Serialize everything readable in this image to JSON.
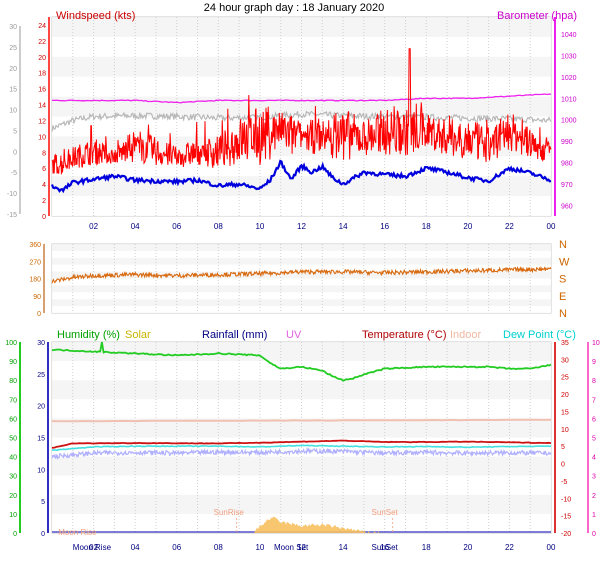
{
  "title": "24 hour graph day : 18 January 2020",
  "time_ticks": [
    "02",
    "04",
    "06",
    "08",
    "10",
    "12",
    "14",
    "16",
    "18",
    "20",
    "22",
    "00"
  ],
  "chart_data": [
    {
      "type": "line",
      "name": "wind-barometer",
      "x_unit": "hour",
      "xlim": [
        0,
        24
      ],
      "y_left": {
        "label": "Windspeed (kts)",
        "ticks": [
          24,
          22,
          20,
          18,
          16,
          14,
          12,
          10,
          8,
          6,
          4,
          2,
          0
        ],
        "ylim": [
          0,
          25
        ]
      },
      "y_right": {
        "label": "Barometer (hpa)",
        "ticks": [
          1040,
          1030,
          1020,
          1010,
          1000,
          990,
          980,
          970,
          960
        ],
        "ylim": [
          955,
          1048
        ]
      },
      "y_outer_left": {
        "ticks": [
          30,
          25,
          20,
          15,
          10,
          5,
          0,
          -5,
          -10,
          -15
        ]
      },
      "series": [
        {
          "key": "gust",
          "color": "#ff0000",
          "samples": [
            [
              0,
              7
            ],
            [
              1,
              8
            ],
            [
              2,
              9
            ],
            [
              3,
              8
            ],
            [
              4,
              10
            ],
            [
              5,
              9
            ],
            [
              6,
              8
            ],
            [
              7,
              9
            ],
            [
              8,
              9
            ],
            [
              9,
              11
            ],
            [
              10,
              12
            ],
            [
              11,
              12
            ],
            [
              12,
              11
            ],
            [
              13,
              11
            ],
            [
              14,
              12
            ],
            [
              15,
              11
            ],
            [
              16,
              12
            ],
            [
              17,
              12
            ],
            [
              18,
              12
            ],
            [
              19,
              11
            ],
            [
              20,
              11
            ],
            [
              21,
              10
            ],
            [
              22,
              12
            ],
            [
              23,
              10
            ],
            [
              24,
              9
            ]
          ],
          "peak": [
            17.2,
            21
          ]
        },
        {
          "key": "average",
          "color": "#0000dd",
          "samples": [
            [
              0,
              3.8
            ],
            [
              0.5,
              3.2
            ],
            [
              1,
              4.2
            ],
            [
              2,
              4.6
            ],
            [
              3,
              5.0
            ],
            [
              4,
              4.5
            ],
            [
              5,
              4.4
            ],
            [
              6,
              4.3
            ],
            [
              7,
              4.5
            ],
            [
              8,
              3.8
            ],
            [
              9,
              4.0
            ],
            [
              10,
              3.4
            ],
            [
              10.5,
              4.5
            ],
            [
              11,
              6.8
            ],
            [
              11.5,
              4.6
            ],
            [
              12,
              6.3
            ],
            [
              12.5,
              5.5
            ],
            [
              13,
              6.2
            ],
            [
              13.5,
              4.8
            ],
            [
              14,
              4.0
            ],
            [
              15,
              5.5
            ],
            [
              16,
              5.2
            ],
            [
              17,
              5.0
            ],
            [
              18,
              6.0
            ],
            [
              19,
              5.5
            ],
            [
              20,
              4.8
            ],
            [
              21,
              4.4
            ],
            [
              22,
              6.0
            ],
            [
              23,
              5.4
            ],
            [
              24,
              4.5
            ]
          ]
        },
        {
          "key": "barometer",
          "color": "#ee22ee",
          "unit": "hpa",
          "samples": [
            [
              0,
              1009
            ],
            [
              4,
              1009
            ],
            [
              6,
              1008
            ],
            [
              8,
              1009
            ],
            [
              10,
              1009
            ],
            [
              12,
              1009
            ],
            [
              14,
              1009
            ],
            [
              16,
              1009
            ],
            [
              18,
              1010
            ],
            [
              20,
              1010
            ],
            [
              22,
              1011
            ],
            [
              24,
              1012
            ]
          ]
        },
        {
          "key": "secondary",
          "color": "#b8b8b8",
          "samples": [
            [
              0,
              11
            ],
            [
              1,
              12
            ],
            [
              2,
              12.5
            ],
            [
              4,
              12.6
            ],
            [
              6,
              12.5
            ],
            [
              8,
              12.3
            ],
            [
              10,
              12.4
            ],
            [
              12,
              12.8
            ],
            [
              14,
              12.6
            ],
            [
              16,
              12.5
            ],
            [
              18,
              12.4
            ],
            [
              20,
              12.3
            ],
            [
              22,
              12.2
            ],
            [
              24,
              12
            ]
          ]
        }
      ]
    },
    {
      "type": "line",
      "name": "wind-direction",
      "x_unit": "hour",
      "xlim": [
        0,
        24
      ],
      "y_left": {
        "ticks": [
          360,
          270,
          180,
          90,
          0
        ],
        "ylim": [
          0,
          360
        ]
      },
      "y_right": {
        "ticks": [
          "N",
          "W",
          "S",
          "E",
          "N"
        ]
      },
      "series": [
        {
          "key": "direction",
          "color": "#d86a10",
          "samples": [
            [
              0,
              165
            ],
            [
              1,
              185
            ],
            [
              2,
              195
            ],
            [
              4,
              200
            ],
            [
              6,
              195
            ],
            [
              8,
              200
            ],
            [
              10,
              205
            ],
            [
              12,
              215
            ],
            [
              14,
              215
            ],
            [
              16,
              210
            ],
            [
              18,
              215
            ],
            [
              20,
              220
            ],
            [
              22,
              225
            ],
            [
              24,
              230
            ]
          ]
        }
      ]
    },
    {
      "type": "line",
      "name": "temperature-humidity",
      "x_unit": "hour",
      "xlim": [
        0,
        24
      ],
      "labels": [
        {
          "text": "Humidity (%)",
          "color": "#00a000"
        },
        {
          "text": "Solar",
          "color": "#c8b400"
        },
        {
          "text": "Rainfall (mm)",
          "color": "#000080"
        },
        {
          "text": "UV",
          "color": "#e060e0"
        },
        {
          "text": "Temperature (°C)",
          "color": "#b00000"
        },
        {
          "text": "Indoor",
          "color": "#f0b8a0"
        },
        {
          "text": "Dew Point (°C)",
          "color": "#00d0d0"
        }
      ],
      "y_left_humidity": {
        "ticks": [
          100,
          90,
          80,
          70,
          60,
          50,
          40,
          30,
          20,
          10,
          0
        ],
        "ylim": [
          0,
          100
        ]
      },
      "y_left_rain": {
        "ticks": [
          30,
          25,
          20,
          15,
          10,
          5,
          0
        ],
        "ylim": [
          0,
          30
        ]
      },
      "y_right_temp": {
        "ticks": [
          35,
          30,
          25,
          20,
          15,
          10,
          5,
          0,
          -5,
          -10,
          -15,
          -20
        ],
        "ylim": [
          -20,
          35
        ]
      },
      "y_right_uv": {
        "ticks": [
          10,
          9,
          8,
          7,
          6,
          5,
          4,
          3,
          2,
          1,
          0
        ],
        "ylim": [
          0,
          10
        ]
      },
      "series": [
        {
          "key": "humidity",
          "color": "#22cc22",
          "unit": "%",
          "samples": [
            [
              0,
              96
            ],
            [
              2,
              95
            ],
            [
              4,
              94
            ],
            [
              6,
              93
            ],
            [
              8,
              94
            ],
            [
              10,
              93
            ],
            [
              10.5,
              89
            ],
            [
              11,
              86
            ],
            [
              12,
              87
            ],
            [
              13,
              85
            ],
            [
              13.5,
              82
            ],
            [
              14,
              80
            ],
            [
              14.5,
              81
            ],
            [
              15,
              83
            ],
            [
              16,
              86
            ],
            [
              18,
              87
            ],
            [
              20,
              87
            ],
            [
              21,
              87
            ],
            [
              22,
              86
            ],
            [
              23,
              86
            ],
            [
              24,
              88
            ]
          ],
          "spike": [
            2.4,
            100
          ]
        },
        {
          "key": "indoor",
          "color": "#f0c0b0",
          "unit": "°C",
          "samples": [
            [
              0,
              12.2
            ],
            [
              24,
              12.6
            ]
          ]
        },
        {
          "key": "temperature",
          "color": "#cc1111",
          "unit": "°C",
          "samples": [
            [
              0,
              4.5
            ],
            [
              1,
              5.8
            ],
            [
              4,
              5.9
            ],
            [
              8,
              5.8
            ],
            [
              10,
              6.0
            ],
            [
              12,
              6.3
            ],
            [
              14,
              6.6
            ],
            [
              16,
              6.2
            ],
            [
              18,
              6.2
            ],
            [
              20,
              6.3
            ],
            [
              22,
              6.1
            ],
            [
              24,
              5.9
            ]
          ]
        },
        {
          "key": "dewpoint",
          "color": "#44e0e0",
          "unit": "°C",
          "samples": [
            [
              0,
              3.8
            ],
            [
              2,
              4.8
            ],
            [
              4,
              5.0
            ],
            [
              8,
              5.0
            ],
            [
              10,
              4.8
            ],
            [
              12,
              5.2
            ],
            [
              14,
              5.0
            ],
            [
              16,
              4.8
            ],
            [
              18,
              4.9
            ],
            [
              20,
              4.7
            ],
            [
              22,
              4.9
            ],
            [
              24,
              5.0
            ]
          ]
        },
        {
          "key": "apparent",
          "color": "#b0b0ff",
          "unit": "°C",
          "samples": [
            [
              0,
              2.0
            ],
            [
              2,
              3.0
            ],
            [
              4,
              3.2
            ],
            [
              6,
              3.0
            ],
            [
              8,
              3.3
            ],
            [
              10,
              3.2
            ],
            [
              12,
              3.6
            ],
            [
              14,
              3.5
            ],
            [
              16,
              3.0
            ],
            [
              18,
              3.2
            ],
            [
              20,
              3.0
            ],
            [
              22,
              3.1
            ],
            [
              24,
              3.0
            ]
          ]
        },
        {
          "key": "rainfall",
          "color": "#3030c0",
          "unit": "mm",
          "samples": [
            [
              0,
              0
            ],
            [
              24,
              0
            ]
          ]
        },
        {
          "key": "solar",
          "color": "#f8c060",
          "samples": [
            [
              9.6,
              0
            ],
            [
              10,
              0.5
            ],
            [
              10.3,
              1.0
            ],
            [
              10.6,
              1.3
            ],
            [
              11,
              0.9
            ],
            [
              12,
              0.6
            ],
            [
              13,
              0.7
            ],
            [
              14,
              0.4
            ],
            [
              15,
              0.1
            ],
            [
              15.8,
              0
            ]
          ]
        }
      ],
      "events": [
        {
          "label": "SunRise",
          "x": 8.5,
          "color": "#f0a080"
        },
        {
          "label": "SunSet",
          "x": 16.0,
          "color": "#f0a080"
        },
        {
          "label": "Moon Rise",
          "x": 0.3,
          "color": "#f0a080"
        },
        {
          "label": "Moon Rise",
          "x": 1.0,
          "color": "#000080"
        },
        {
          "label": "Moon Set",
          "x": 11.5,
          "color": "#000080"
        },
        {
          "label": "SunSet",
          "x": 16.0,
          "color": "#000080"
        }
      ]
    }
  ]
}
